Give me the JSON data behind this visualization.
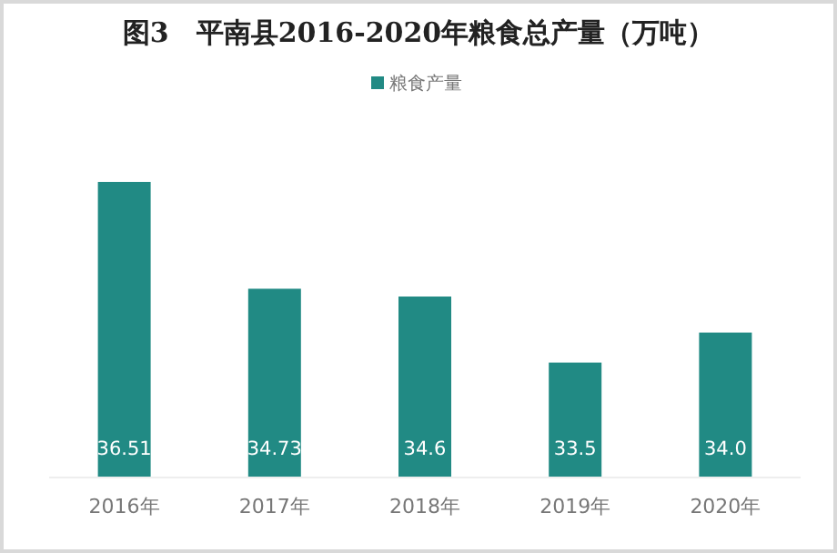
{
  "chart_data": {
    "type": "bar",
    "title": "图3　平南县2016-2020年粮食总产量（万吨）",
    "categories": [
      "2016年",
      "2017年",
      "2018年",
      "2019年",
      "2020年"
    ],
    "series": [
      {
        "name": "粮食产量",
        "color": "#218a84",
        "values": [
          36.51,
          34.73,
          34.6,
          33.5,
          34.0
        ],
        "value_labels": [
          "36.51",
          "34.73",
          "34.6",
          "33.5",
          "34.0"
        ]
      }
    ],
    "ylim": [
      31.6,
      36.51
    ],
    "legend": "top",
    "grid": false
  }
}
